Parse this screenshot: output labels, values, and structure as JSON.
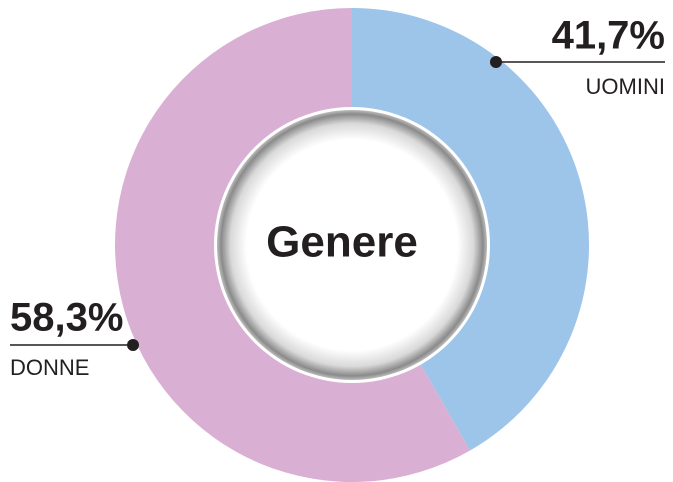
{
  "chart_data": {
    "type": "donut",
    "title": "Genere",
    "categories": [
      "UOMINI",
      "DONNE"
    ],
    "values": [
      41.7,
      58.3
    ],
    "value_labels": [
      "41,7%",
      "58,3%"
    ],
    "colors": [
      "#9dc4e9",
      "#d9b0d3"
    ]
  }
}
